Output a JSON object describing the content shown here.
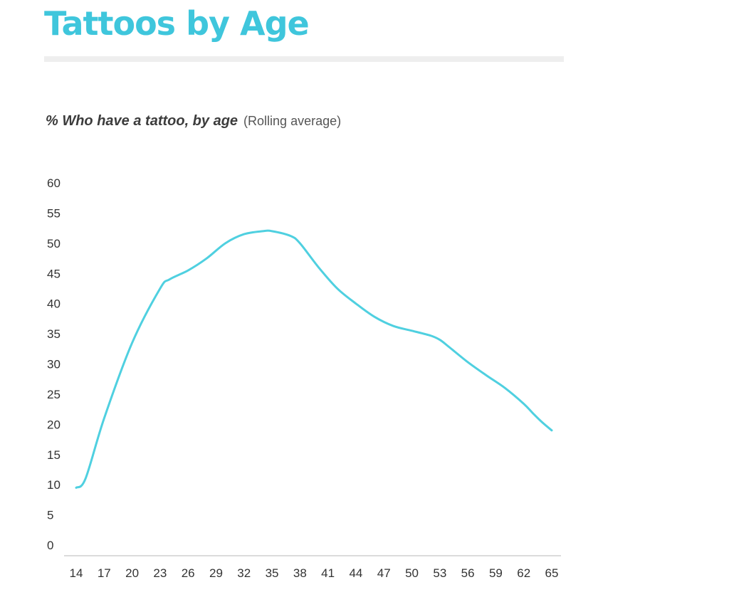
{
  "page": {
    "title": "Tattoos by Age",
    "accent_color": "#3fc6dc"
  },
  "chart_data": {
    "type": "line",
    "title": "Tattoos by Age",
    "subtitle_main": "% Who have a tattoo, by age",
    "subtitle_note": "(Rolling average)",
    "xlabel": "",
    "ylabel": "",
    "xlim": [
      14,
      65
    ],
    "ylim": [
      0,
      60
    ],
    "x_ticks": [
      14,
      17,
      20,
      23,
      26,
      29,
      32,
      35,
      38,
      41,
      44,
      47,
      50,
      53,
      56,
      59,
      62,
      65
    ],
    "y_ticks": [
      0,
      5,
      10,
      15,
      20,
      25,
      30,
      35,
      40,
      45,
      50,
      55,
      60
    ],
    "grid": false,
    "legend": "none",
    "line_color": "#4fd0e0",
    "series": [
      {
        "x": [
          14,
          15,
          17,
          20,
          23,
          24,
          26,
          28,
          30,
          32,
          34,
          35,
          37,
          38,
          40,
          42,
          44,
          46,
          48,
          50,
          52,
          53,
          54,
          56,
          58,
          60,
          62,
          63,
          64,
          65
        ],
        "values": [
          9.5,
          11,
          21,
          33.5,
          42.5,
          44,
          45.5,
          47.5,
          50,
          51.5,
          52,
          52,
          51.2,
          50,
          46,
          42.5,
          40,
          37.8,
          36.3,
          35.5,
          34.7,
          34,
          32.8,
          30.3,
          28.1,
          26,
          23.4,
          21.8,
          20.3,
          19
        ]
      }
    ]
  }
}
